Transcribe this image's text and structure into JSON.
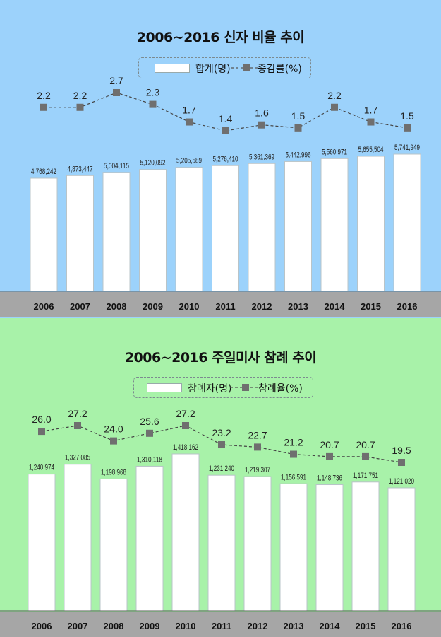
{
  "colors": {
    "panel1_bg": "#9cd2fb",
    "panel2_bg": "#a8f2a9",
    "bar": "#ffffff",
    "marker": "#6f6f6f",
    "axis_band": "#a6a6a6"
  },
  "chart_data": [
    {
      "type": "bar",
      "title": "2006~2016 신자 비율 추이",
      "categories": [
        "2006",
        "2007",
        "2008",
        "2009",
        "2010",
        "2011",
        "2012",
        "2013",
        "2014",
        "2015",
        "2016"
      ],
      "series": [
        {
          "name": "합계(명)",
          "type": "bar",
          "values": [
            4768242,
            4873447,
            5004115,
            5120092,
            5205589,
            5276410,
            5361369,
            5442996,
            5560971,
            5655504,
            5741949
          ],
          "labels": [
            "4,768,242",
            "4,873,447",
            "5,004,115",
            "5,120,092",
            "5,205,589",
            "5,276,410",
            "5,361,369",
            "5,442,996",
            "5,560,971",
            "5,655,504",
            "5,741,949"
          ]
        },
        {
          "name": "증감률(%)",
          "type": "line",
          "values": [
            2.2,
            2.2,
            2.7,
            2.3,
            1.7,
            1.4,
            1.6,
            1.5,
            2.2,
            1.7,
            1.5
          ],
          "labels": [
            "2.2",
            "2.2",
            "2.7",
            "2.3",
            "1.7",
            "1.4",
            "1.6",
            "1.5",
            "2.2",
            "1.7",
            "1.5"
          ]
        }
      ],
      "legend": "top-center",
      "grid": false
    },
    {
      "type": "bar",
      "title": "2006~2016 주일미사 참례 추이",
      "categories": [
        "2006",
        "2007",
        "2008",
        "2009",
        "2010",
        "2011",
        "2012",
        "2013",
        "2014",
        "2015",
        "2016"
      ],
      "series": [
        {
          "name": "참례자(명)",
          "type": "bar",
          "values": [
            1240974,
            1327085,
            1198968,
            1310118,
            1418162,
            1231240,
            1219307,
            1156591,
            1148736,
            1171751,
            1121020
          ],
          "labels": [
            "1,240,974",
            "1,327,085",
            "1,198,968",
            "1,310,118",
            "1,418,162",
            "1,231,240",
            "1,219,307",
            "1,156,591",
            "1,148,736",
            "1,171,751",
            "1,121,020"
          ]
        },
        {
          "name": "참례율(%)",
          "type": "line",
          "values": [
            26.0,
            27.2,
            24.0,
            25.6,
            27.2,
            23.2,
            22.7,
            21.2,
            20.7,
            20.7,
            19.5
          ],
          "labels": [
            "26.0",
            "27.2",
            "24.0",
            "25.6",
            "27.2",
            "23.2",
            "22.7",
            "21.2",
            "20.7",
            "20.7",
            "19.5"
          ]
        }
      ],
      "legend": "top-center",
      "grid": false
    }
  ]
}
